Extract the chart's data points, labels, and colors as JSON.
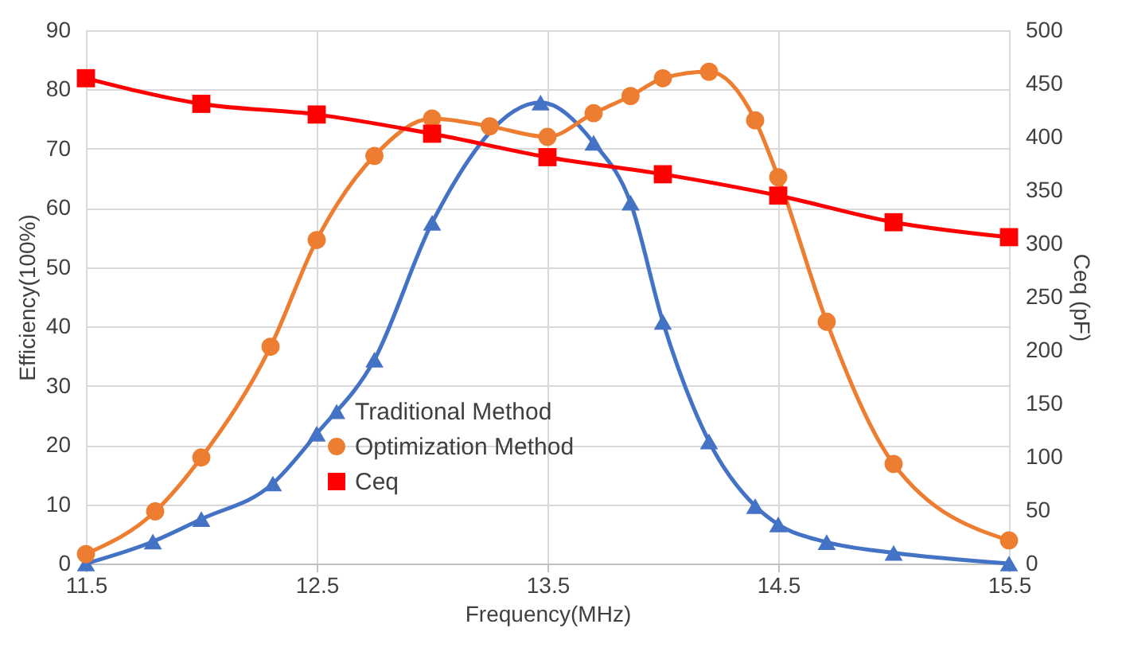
{
  "chart_data": {
    "type": "line",
    "xlabel": "Frequency(MHz)",
    "ylabel": "Efficiency(100%)",
    "y2label": "Ceq (pF)",
    "xlim": [
      11.5,
      15.5
    ],
    "xticks": [
      11.5,
      12.5,
      13.5,
      14.5,
      15.5
    ],
    "ylim": [
      0,
      90
    ],
    "yticks": [
      0,
      10,
      20,
      30,
      40,
      50,
      60,
      70,
      80,
      90
    ],
    "y2lim": [
      0,
      500
    ],
    "y2ticks": [
      0,
      50,
      100,
      150,
      200,
      250,
      300,
      350,
      400,
      450,
      500
    ],
    "grid": true,
    "legend": "bottom",
    "line_style": "solid",
    "series": [
      {
        "name": "Traditional Method",
        "color": "#4472c4",
        "marker": "triangle",
        "x": [
          11.5,
          11.79,
          12.0,
          12.31,
          12.5,
          12.75,
          13.0,
          13.47,
          13.7,
          13.86,
          14.0,
          14.2,
          14.4,
          14.5,
          14.71,
          15.0,
          15.5
        ],
        "values": [
          0,
          3.7,
          7.5,
          13.5,
          21.9,
          34.4,
          57.5,
          77.8,
          71,
          60.9,
          40.8,
          20.6,
          9.7,
          6.6,
          3.6,
          1.8,
          0
        ]
      },
      {
        "name": "Optimization Method",
        "color": "#ed7d31",
        "marker": "circle",
        "x": [
          11.5,
          11.8,
          12.0,
          12.3,
          12.5,
          12.75,
          13.0,
          13.25,
          13.5,
          13.7,
          13.86,
          14.0,
          14.2,
          14.4,
          14.5,
          14.71,
          15.0,
          15.5
        ],
        "values": [
          1.6,
          8.8,
          17.9,
          36.6,
          54.6,
          68.8,
          75.1,
          73.8,
          72,
          76,
          78.9,
          81.9,
          83,
          74.8,
          65.2,
          40.8,
          16.8,
          3.9
        ]
      },
      {
        "name": "Ceq",
        "color": "#ff0000",
        "marker": "square",
        "axis": "y2",
        "x": [
          11.5,
          12.0,
          12.5,
          13.0,
          13.5,
          14.0,
          14.5,
          15.0,
          15.5
        ],
        "values": [
          455,
          431,
          421,
          403,
          381,
          365,
          345,
          320,
          306
        ]
      }
    ]
  }
}
